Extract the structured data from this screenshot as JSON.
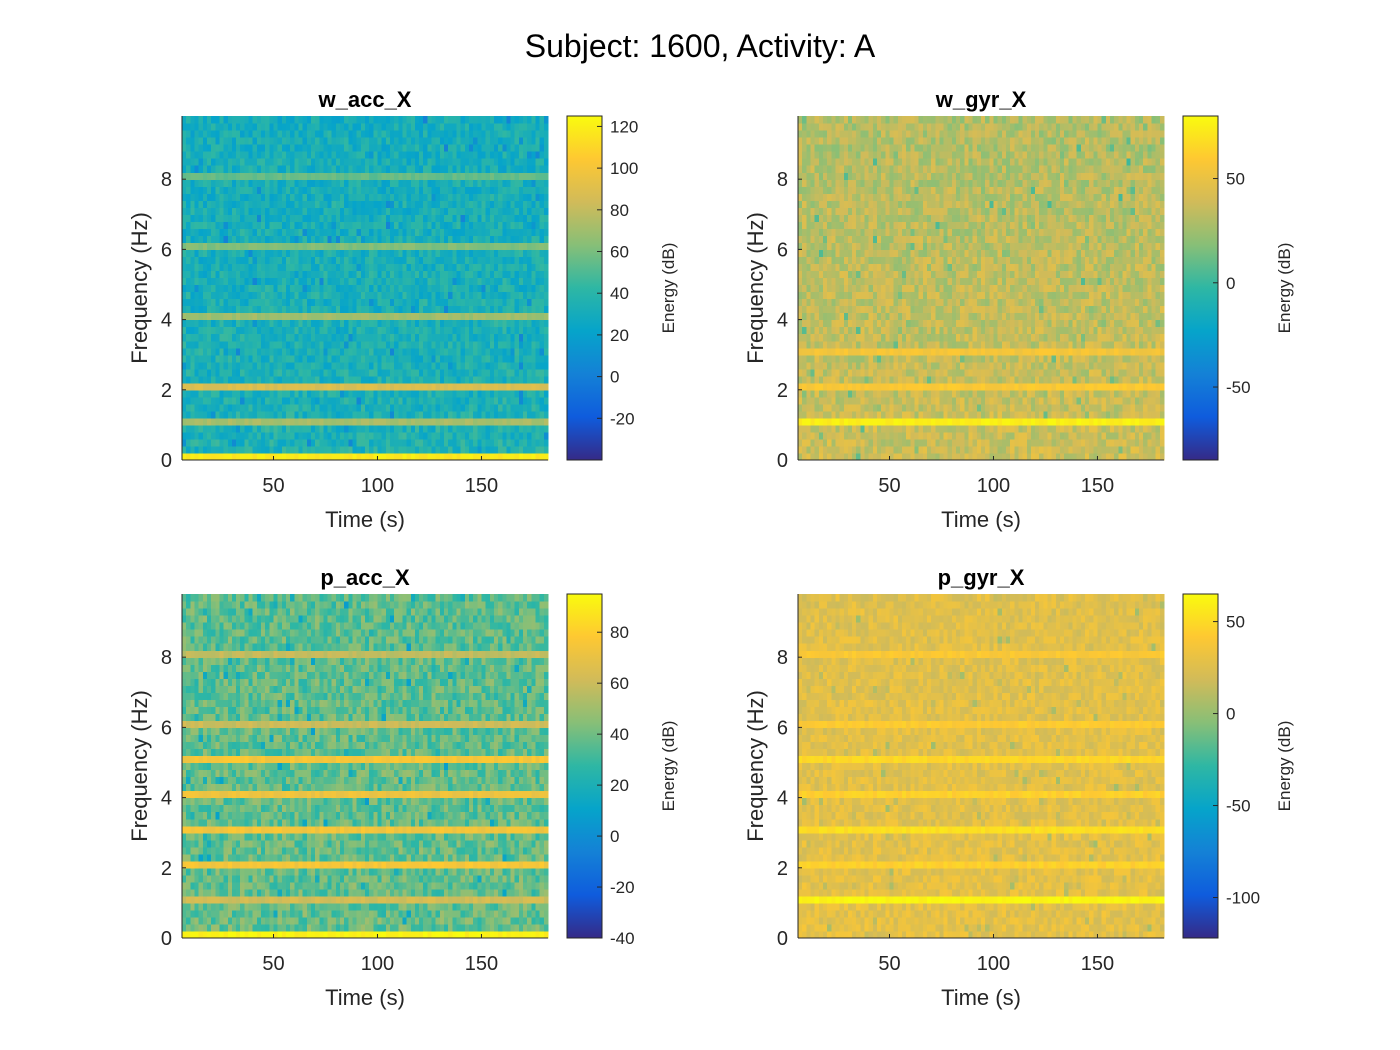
{
  "figure_title": "Subject: 1600, Activity: A",
  "colors": {
    "parula": [
      "#352a87",
      "#0f5cdd",
      "#1481d6",
      "#06a4ca",
      "#2eb7a4",
      "#87bf77",
      "#d1bb59",
      "#fec832",
      "#f9fb0e"
    ],
    "axis": "#262626"
  },
  "chart_data": [
    {
      "type": "heatmap",
      "title": "w_acc_X",
      "xlabel": "Time (s)",
      "ylabel": "Frequency (Hz)",
      "colorbar_label": "Energy (dB)",
      "xlim": [
        6,
        182
      ],
      "ylim": [
        0,
        9.8
      ],
      "xticks": [
        50,
        100,
        150
      ],
      "yticks": [
        0,
        2,
        4,
        6,
        8
      ],
      "clim": [
        -40,
        125
      ],
      "cticks": [
        -20,
        0,
        20,
        40,
        60,
        80,
        100,
        120
      ],
      "time_bins": 88,
      "freq_bins": 49,
      "base_level_db": 35,
      "noise_db": 12,
      "decay_db": 4,
      "bands": [
        {
          "freq_hz": 0.1,
          "level_db": 118
        },
        {
          "freq_hz": 1.1,
          "level_db": 72
        },
        {
          "freq_hz": 2.1,
          "level_db": 88
        },
        {
          "freq_hz": 4.1,
          "level_db": 70
        },
        {
          "freq_hz": 6.1,
          "level_db": 62
        },
        {
          "freq_hz": 8.1,
          "level_db": 55
        }
      ]
    },
    {
      "type": "heatmap",
      "title": "w_gyr_X",
      "xlabel": "Time (s)",
      "ylabel": "Frequency (Hz)",
      "colorbar_label": "Energy (dB)",
      "xlim": [
        6,
        182
      ],
      "ylim": [
        0,
        9.8
      ],
      "xticks": [
        50,
        100,
        150
      ],
      "yticks": [
        0,
        2,
        4,
        6,
        8
      ],
      "clim": [
        -85,
        80
      ],
      "cticks": [
        -50,
        0,
        50
      ],
      "time_bins": 88,
      "freq_bins": 49,
      "base_level_db": 38,
      "noise_db": 12,
      "decay_db": 8,
      "bands": [
        {
          "freq_hz": 1.1,
          "level_db": 75
        },
        {
          "freq_hz": 2.1,
          "level_db": 58
        },
        {
          "freq_hz": 3.1,
          "level_db": 55
        }
      ]
    },
    {
      "type": "heatmap",
      "title": "p_acc_X",
      "xlabel": "Time (s)",
      "ylabel": "Frequency (Hz)",
      "colorbar_label": "Energy (dB)",
      "xlim": [
        6,
        182
      ],
      "ylim": [
        0,
        9.8
      ],
      "xticks": [
        50,
        100,
        150
      ],
      "yticks": [
        0,
        2,
        4,
        6,
        8
      ],
      "clim": [
        -40,
        95
      ],
      "cticks": [
        -40,
        -20,
        0,
        20,
        40,
        60,
        80
      ],
      "time_bins": 88,
      "freq_bins": 49,
      "base_level_db": 38,
      "noise_db": 12,
      "decay_db": 2,
      "bands": [
        {
          "freq_hz": 0.1,
          "level_db": 92
        },
        {
          "freq_hz": 1.1,
          "level_db": 62
        },
        {
          "freq_hz": 2.1,
          "level_db": 75
        },
        {
          "freq_hz": 3.1,
          "level_db": 74
        },
        {
          "freq_hz": 4.1,
          "level_db": 72
        },
        {
          "freq_hz": 5.1,
          "level_db": 75
        },
        {
          "freq_hz": 6.1,
          "level_db": 60
        },
        {
          "freq_hz": 8.1,
          "level_db": 58
        }
      ]
    },
    {
      "type": "heatmap",
      "title": "p_gyr_X",
      "xlabel": "Time (s)",
      "ylabel": "Frequency (Hz)",
      "colorbar_label": "Energy (dB)",
      "xlim": [
        6,
        182
      ],
      "ylim": [
        0,
        9.8
      ],
      "xticks": [
        50,
        100,
        150
      ],
      "yticks": [
        0,
        2,
        4,
        6,
        8
      ],
      "clim": [
        -122,
        65
      ],
      "cticks": [
        -100,
        -50,
        0,
        50
      ],
      "time_bins": 88,
      "freq_bins": 49,
      "base_level_db": 28,
      "noise_db": 10,
      "decay_db": 2,
      "bands": [
        {
          "freq_hz": 1.1,
          "level_db": 62
        },
        {
          "freq_hz": 2.1,
          "level_db": 45
        },
        {
          "freq_hz": 3.1,
          "level_db": 52
        },
        {
          "freq_hz": 4.1,
          "level_db": 45
        },
        {
          "freq_hz": 5.1,
          "level_db": 48
        },
        {
          "freq_hz": 6.1,
          "level_db": 42
        },
        {
          "freq_hz": 8.1,
          "level_db": 40
        }
      ]
    }
  ]
}
